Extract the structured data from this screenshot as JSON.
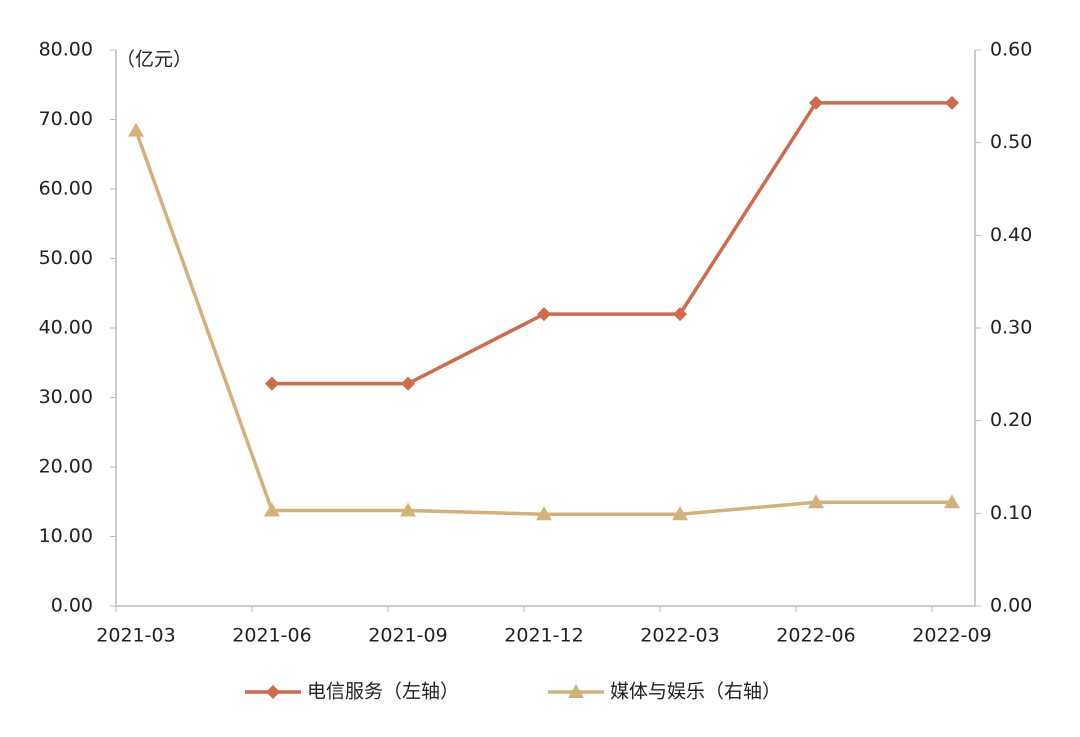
{
  "chart_data": {
    "type": "line",
    "y_unit_label": "（亿元）",
    "categories": [
      "2021-03",
      "2021-06",
      "2021-09",
      "2021-12",
      "2022-03",
      "2022-06",
      "2022-09"
    ],
    "series": [
      {
        "name": "电信服务（左轴）",
        "color": "#cf6a4b",
        "marker": "diamond",
        "values": [
          null,
          32,
          32,
          42,
          42,
          72.4,
          72.4
        ]
      },
      {
        "name": "媒体与娱乐（右轴）",
        "color": "#d4b07a",
        "marker": "triangle",
        "axis": "y2",
        "values": [
          0.513,
          0.103,
          0.103,
          0.099,
          0.099,
          0.112,
          0.112
        ]
      }
    ],
    "ylim": [
      0,
      80
    ],
    "yticks": [
      {
        "value": 0,
        "label": "0.00"
      },
      {
        "value": 10,
        "label": "10.00"
      },
      {
        "value": 20,
        "label": "20.00"
      },
      {
        "value": 30,
        "label": "30.00"
      },
      {
        "value": 40,
        "label": "40.00"
      },
      {
        "value": 50,
        "label": "50.00"
      },
      {
        "value": 60,
        "label": "60.00"
      },
      {
        "value": 70,
        "label": "70.00"
      },
      {
        "value": 80,
        "label": "80.00"
      }
    ],
    "y2lim": [
      0,
      0.6
    ],
    "y2ticks": [
      {
        "value": 0,
        "label": "0.00"
      },
      {
        "value": 0.1,
        "label": "0.10"
      },
      {
        "value": 0.2,
        "label": "0.20"
      },
      {
        "value": 0.3,
        "label": "0.30"
      },
      {
        "value": 0.4,
        "label": "0.40"
      },
      {
        "value": 0.5,
        "label": "0.50"
      },
      {
        "value": 0.6,
        "label": "0.60"
      }
    ],
    "legend": "bottom"
  }
}
